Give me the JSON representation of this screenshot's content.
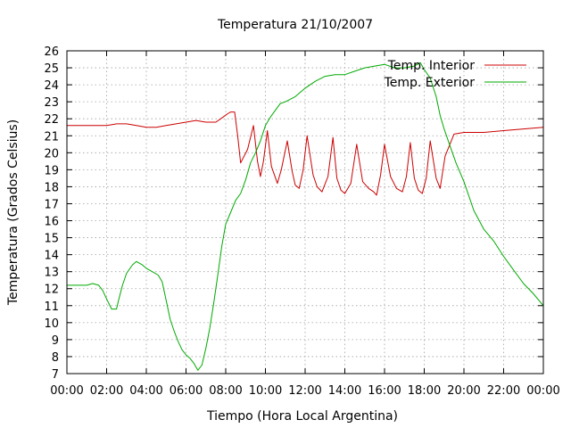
{
  "chart_data": {
    "type": "line",
    "title": "Temperatura 21/10/2007",
    "xlabel": "Tiempo (Hora Local Argentina)",
    "ylabel": "Temperatura (Grados Celsius)",
    "ylim": [
      7,
      26
    ],
    "xlim": [
      0,
      24
    ],
    "x_unit": "hours",
    "x_tick_labels": [
      "00:00",
      "02:00",
      "04:00",
      "06:00",
      "08:00",
      "10:00",
      "12:00",
      "14:00",
      "16:00",
      "18:00",
      "20:00",
      "22:00",
      "00:00"
    ],
    "y_ticks": [
      7,
      8,
      9,
      10,
      11,
      12,
      13,
      14,
      15,
      16,
      17,
      18,
      19,
      20,
      21,
      22,
      23,
      24,
      25,
      26
    ],
    "grid": true,
    "legend_position": "top-right",
    "series": [
      {
        "name": "Temp. Interior",
        "color": "#cc0000",
        "x": [
          0,
          1,
          2,
          2.5,
          3,
          3.5,
          4,
          4.5,
          5,
          5.5,
          6,
          6.5,
          7,
          7.5,
          7.75,
          8.1,
          8.25,
          8.45,
          8.6,
          8.75,
          9.1,
          9.4,
          9.6,
          9.75,
          9.9,
          10.1,
          10.3,
          10.6,
          10.8,
          11.1,
          11.35,
          11.5,
          11.7,
          11.9,
          12.1,
          12.4,
          12.6,
          12.85,
          13.15,
          13.4,
          13.6,
          13.8,
          14,
          14.3,
          14.6,
          14.9,
          15.2,
          15.45,
          15.6,
          15.8,
          16,
          16.3,
          16.6,
          16.9,
          17.1,
          17.3,
          17.5,
          17.7,
          17.9,
          18.1,
          18.3,
          18.6,
          18.8,
          19.05,
          19.5,
          20,
          21,
          22,
          23,
          24
        ],
        "y": [
          21.6,
          21.6,
          21.6,
          21.7,
          21.7,
          21.6,
          21.5,
          21.5,
          21.6,
          21.7,
          21.8,
          21.9,
          21.8,
          21.8,
          22.0,
          22.3,
          22.4,
          22.4,
          21.0,
          19.4,
          20.2,
          21.6,
          19.5,
          18.6,
          19.5,
          21.3,
          19.2,
          18.2,
          19.0,
          20.7,
          18.9,
          18.1,
          17.9,
          19.0,
          21.0,
          18.7,
          18.0,
          17.7,
          18.6,
          20.9,
          18.5,
          17.8,
          17.6,
          18.2,
          20.5,
          18.3,
          17.9,
          17.7,
          17.5,
          18.7,
          20.5,
          18.6,
          17.9,
          17.7,
          18.6,
          20.6,
          18.5,
          17.8,
          17.6,
          18.5,
          20.7,
          18.5,
          17.9,
          19.8,
          21.1,
          21.2,
          21.2,
          21.3,
          21.4,
          21.5
        ]
      },
      {
        "name": "Temp. Exterior",
        "color": "#00aa00",
        "x": [
          0,
          0.5,
          1,
          1.3,
          1.6,
          1.8,
          2,
          2.25,
          2.5,
          2.6,
          2.8,
          3,
          3.3,
          3.5,
          3.8,
          4,
          4.3,
          4.6,
          4.8,
          5,
          5.2,
          5.4,
          5.6,
          5.8,
          6,
          6.2,
          6.4,
          6.6,
          6.8,
          7,
          7.2,
          7.4,
          7.6,
          7.8,
          8,
          8.25,
          8.5,
          8.75,
          9,
          9.25,
          9.5,
          9.75,
          10,
          10.25,
          10.5,
          10.75,
          11,
          11.5,
          12,
          12.5,
          13,
          13.5,
          14,
          14.5,
          15,
          15.5,
          16,
          16.5,
          17,
          17.5,
          17.8,
          18,
          18.3,
          18.6,
          18.8,
          19,
          19.3,
          19.6,
          20,
          20.5,
          21,
          21.5,
          22,
          22.5,
          23,
          23.5,
          24
        ],
        "y": [
          12.2,
          12.2,
          12.2,
          12.3,
          12.2,
          11.9,
          11.4,
          10.8,
          10.8,
          11.3,
          12.2,
          12.9,
          13.4,
          13.6,
          13.4,
          13.2,
          13.0,
          12.8,
          12.4,
          11.3,
          10.2,
          9.5,
          8.9,
          8.4,
          8.1,
          7.9,
          7.6,
          7.2,
          7.5,
          8.5,
          9.7,
          11.2,
          12.8,
          14.5,
          15.8,
          16.5,
          17.2,
          17.6,
          18.4,
          19.4,
          20.0,
          20.7,
          21.6,
          22.1,
          22.5,
          22.9,
          23.0,
          23.3,
          23.8,
          24.2,
          24.5,
          24.6,
          24.6,
          24.8,
          25.0,
          25.1,
          25.2,
          25.0,
          25.0,
          25.1,
          25.3,
          24.9,
          24.4,
          23.3,
          22.2,
          21.4,
          20.4,
          19.4,
          18.3,
          16.6,
          15.5,
          14.8,
          13.9,
          13.1,
          12.3,
          11.7,
          11.0
        ]
      }
    ]
  }
}
